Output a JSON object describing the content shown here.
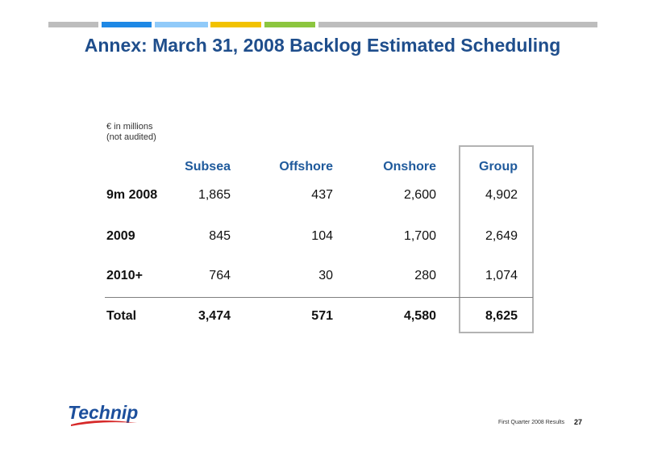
{
  "header": {
    "stripes": [
      {
        "color": "#bdbdbd"
      },
      {
        "color": "#1e88e5"
      },
      {
        "color": "#90caf9"
      },
      {
        "color": "#f2c200"
      },
      {
        "color": "#8cc63f"
      },
      {
        "color": "#bdbdbd"
      }
    ]
  },
  "title": "Annex: March 31, 2008 Backlog Estimated Scheduling",
  "units": {
    "line1": "€ in millions",
    "line2": "(not audited)"
  },
  "table": {
    "columns": [
      "Subsea",
      "Offshore",
      "Onshore",
      "Group"
    ],
    "rows": [
      {
        "label": "9m 2008",
        "values": [
          "1,865",
          "437",
          "2,600",
          "4,902"
        ]
      },
      {
        "label": "2009",
        "values": [
          "845",
          "104",
          "1,700",
          "2,649"
        ]
      },
      {
        "label": "2010+",
        "values": [
          "764",
          "30",
          "280",
          "1,074"
        ]
      },
      {
        "label": "Total",
        "values": [
          "3,474",
          "571",
          "4,580",
          "8,625"
        ]
      }
    ]
  },
  "logo": {
    "text": "Technip"
  },
  "footer": {
    "text": "First Quarter 2008 Results",
    "page": "27"
  },
  "colors": {
    "title": "#1f4e8c",
    "header": "#1f5a9c",
    "logo_blue": "#1c4f9c",
    "logo_red": "#d62828"
  }
}
